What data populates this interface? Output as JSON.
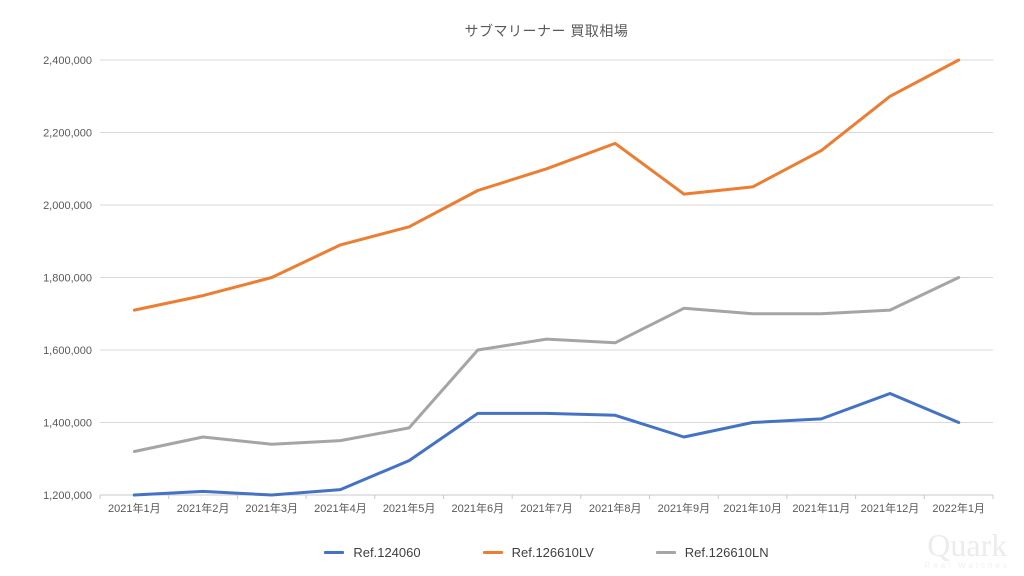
{
  "title": "サブマリーナー 買取相場",
  "chart_data": {
    "type": "line",
    "title": "サブマリーナー 買取相場",
    "categories": [
      "2021年1月",
      "2021年2月",
      "2021年3月",
      "2021年4月",
      "2021年5月",
      "2021年6月",
      "2021年7月",
      "2021年8月",
      "2021年9月",
      "2021年10月",
      "2021年11月",
      "2021年12月",
      "2022年1月"
    ],
    "series": [
      {
        "name": "Ref.124060",
        "color": "#4472C4",
        "values": [
          1200000,
          1210000,
          1200000,
          1215000,
          1295000,
          1425000,
          1425000,
          1420000,
          1360000,
          1400000,
          1410000,
          1480000,
          1400000
        ]
      },
      {
        "name": "Ref.126610LV",
        "color": "#ED7D31",
        "values": [
          1710000,
          1750000,
          1800000,
          1890000,
          1940000,
          2040000,
          2100000,
          2170000,
          2030000,
          2050000,
          2150000,
          2300000,
          2400000
        ]
      },
      {
        "name": "Ref.126610LN",
        "color": "#A5A5A5",
        "values": [
          1320000,
          1360000,
          1340000,
          1350000,
          1385000,
          1600000,
          1630000,
          1620000,
          1715000,
          1700000,
          1700000,
          1710000,
          1800000
        ]
      }
    ],
    "xlabel": "",
    "ylabel": "",
    "ylim": [
      1200000,
      2400000
    ],
    "ytick_step": 200000,
    "ytick_labels": [
      "1,200,000",
      "1,400,000",
      "1,600,000",
      "1,800,000",
      "2,000,000",
      "2,200,000",
      "2,400,000"
    ],
    "grid": true,
    "legend_position": "bottom"
  },
  "watermark": {
    "brand": "Quark",
    "tagline": "Real Watches"
  },
  "colors": {
    "gridline": "#D9D9D9",
    "axis_line": "#C8C8C8",
    "tick_label": "#595959",
    "title_text": "#595959",
    "legend_text": "#404040",
    "background": "#FFFFFF"
  }
}
